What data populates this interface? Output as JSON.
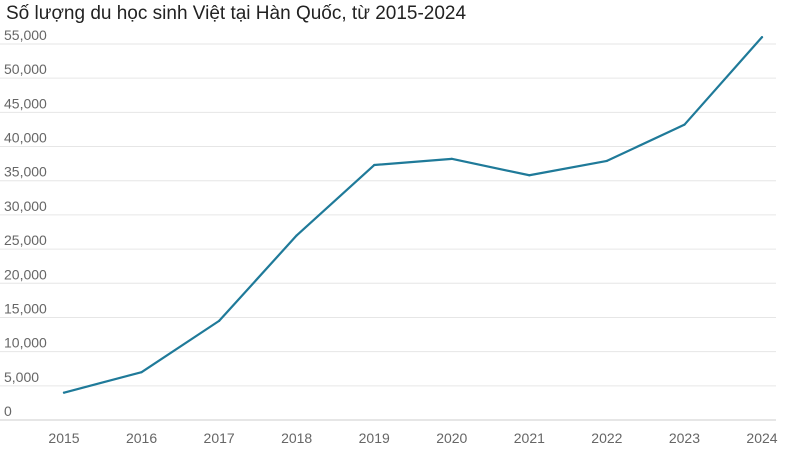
{
  "chart_data": {
    "type": "line",
    "title": "Số lượng du học sinh Việt tại Hàn Quốc, từ 2015-2024",
    "x": [
      "2015",
      "2016",
      "2017",
      "2018",
      "2019",
      "2020",
      "2021",
      "2022",
      "2023",
      "2024"
    ],
    "series": [
      {
        "values": [
          4000,
          7000,
          14500,
          27000,
          37300,
          38200,
          35800,
          37900,
          43200,
          56000
        ]
      }
    ],
    "ylim": [
      0,
      55000
    ],
    "yticks": [
      0,
      5000,
      10000,
      15000,
      20000,
      25000,
      30000,
      35000,
      40000,
      45000,
      50000,
      55000
    ],
    "ytick_labels": [
      "0",
      "5,000",
      "10,000",
      "15,000",
      "20,000",
      "25,000",
      "30,000",
      "35,000",
      "40,000",
      "45,000",
      "50,000",
      "55,000"
    ],
    "xlabel": "",
    "ylabel": "",
    "grid": true,
    "legend": false,
    "line_color": "#1f7a99",
    "grid_color": "#e6e6e6"
  }
}
